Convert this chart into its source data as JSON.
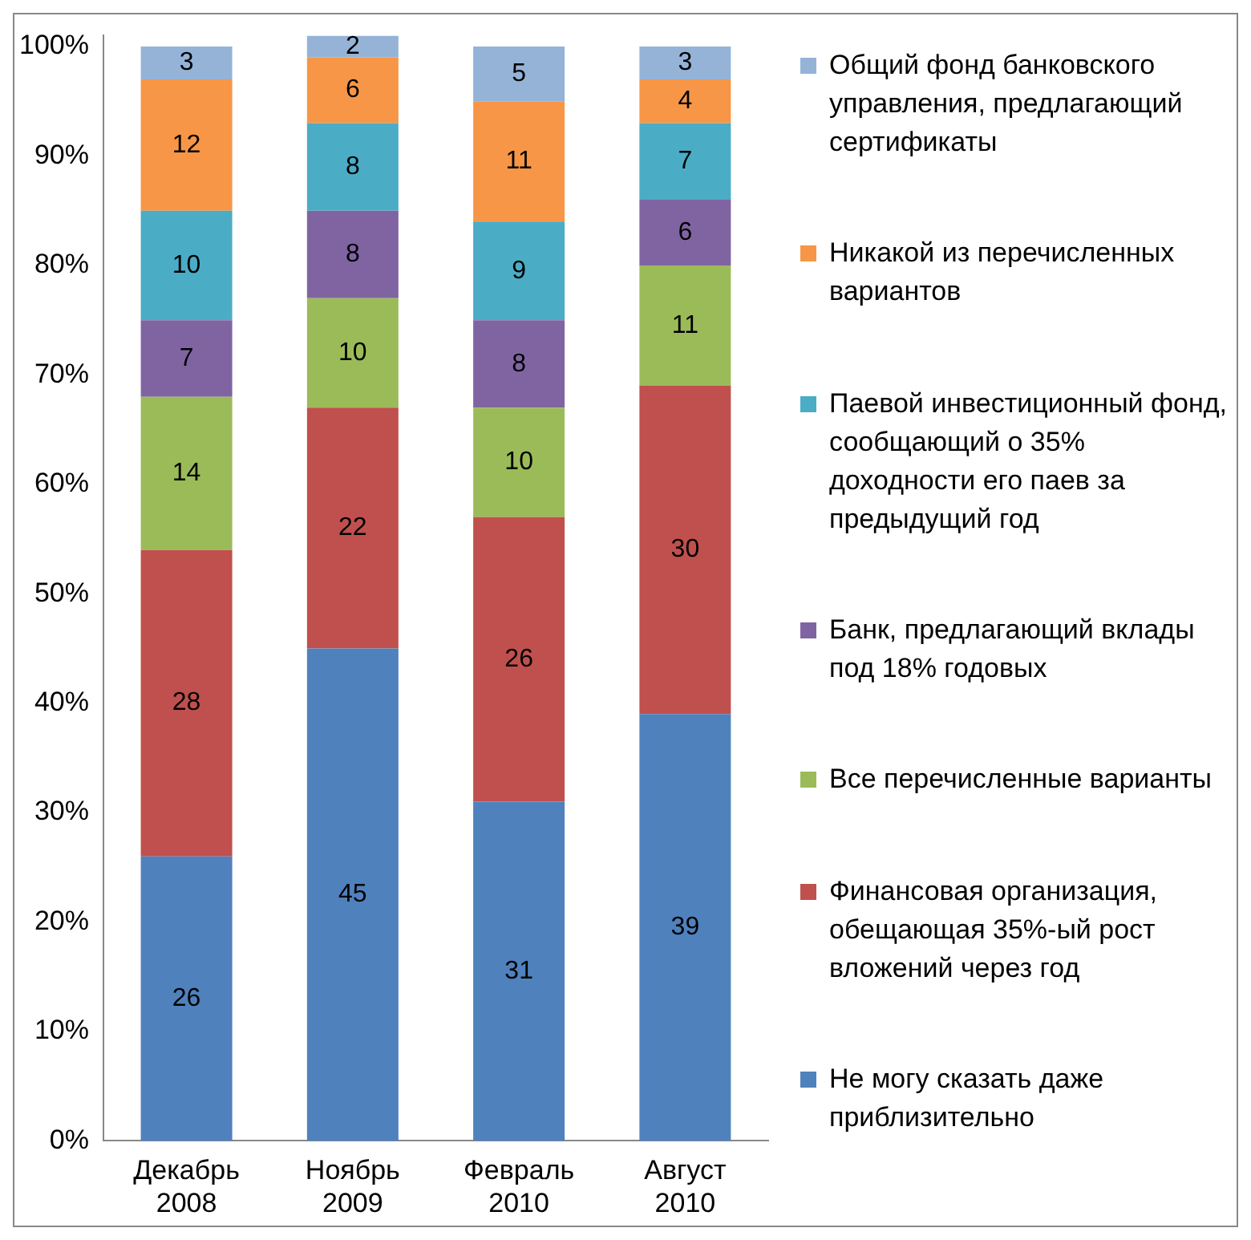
{
  "chart_data": {
    "type": "bar",
    "stacked": true,
    "categories": [
      "Декабрь 2008",
      "Ноябрь 2009",
      "Февраль 2010",
      "Август 2010"
    ],
    "series": [
      {
        "name": "Не могу сказать даже приблизительно",
        "color": "#4f81bd",
        "values": [
          26,
          45,
          31,
          39
        ]
      },
      {
        "name": "Финансовая организация, обещающая 35%-ый рост вложений через год",
        "color": "#c0504d",
        "values": [
          28,
          22,
          26,
          30
        ]
      },
      {
        "name": "Все перечисленные варианты",
        "color": "#9bbb59",
        "values": [
          14,
          10,
          10,
          11
        ]
      },
      {
        "name": "Банк, предлагающий вклады под 18% годовых",
        "color": "#8064a2",
        "values": [
          7,
          8,
          8,
          6
        ]
      },
      {
        "name": "Паевой инвестиционный фонд, сообщающий о 35% доходности его паев за предыдущий год",
        "color": "#4bacc6",
        "values": [
          10,
          8,
          9,
          7
        ]
      },
      {
        "name": "Никакой из перечисленных вариантов",
        "color": "#f79646",
        "values": [
          12,
          6,
          11,
          4
        ]
      },
      {
        "name": "Общий фонд банковского управления, предлагающий сертификаты",
        "color": "#95b3d7",
        "values": [
          3,
          2,
          5,
          3
        ]
      }
    ],
    "ylim": [
      0,
      101
    ],
    "yticks": [
      {
        "value": 0,
        "label": "0%"
      },
      {
        "value": 10,
        "label": "10%"
      },
      {
        "value": 20,
        "label": "20%"
      },
      {
        "value": 30,
        "label": "30%"
      },
      {
        "value": 40,
        "label": "40%"
      },
      {
        "value": 50,
        "label": "50%"
      },
      {
        "value": 60,
        "label": "60%"
      },
      {
        "value": 70,
        "label": "70%"
      },
      {
        "value": 80,
        "label": "80%"
      },
      {
        "value": 90,
        "label": "90%"
      },
      {
        "value": 100,
        "label": "100%"
      }
    ],
    "grid": false,
    "legend": "right",
    "data_labels": true
  }
}
